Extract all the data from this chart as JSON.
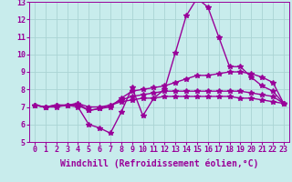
{
  "background_color": "#c8ecec",
  "grid_color": "#aad4d4",
  "line_color": "#990099",
  "xlim": [
    -0.5,
    23.5
  ],
  "ylim": [
    5,
    13
  ],
  "xlabel": "Windchill (Refroidissement éolien,°C)",
  "xticks": [
    0,
    1,
    2,
    3,
    4,
    5,
    6,
    7,
    8,
    9,
    10,
    11,
    12,
    13,
    14,
    15,
    16,
    17,
    18,
    19,
    20,
    21,
    22,
    23
  ],
  "yticks": [
    5,
    6,
    7,
    8,
    9,
    10,
    11,
    12,
    13
  ],
  "curves": [
    [
      7.1,
      7.0,
      7.0,
      7.1,
      7.0,
      6.0,
      5.8,
      5.5,
      6.7,
      8.1,
      6.5,
      7.5,
      8.0,
      10.1,
      12.2,
      13.2,
      12.7,
      11.0,
      9.3,
      9.3,
      8.7,
      8.2,
      7.9,
      7.2
    ],
    [
      7.1,
      7.0,
      7.1,
      7.1,
      7.1,
      6.8,
      6.9,
      7.0,
      7.5,
      7.9,
      8.0,
      8.1,
      8.2,
      8.4,
      8.6,
      8.8,
      8.8,
      8.9,
      9.0,
      9.0,
      8.9,
      8.7,
      8.4,
      7.2
    ],
    [
      7.1,
      7.0,
      7.1,
      7.1,
      7.2,
      6.8,
      6.9,
      7.1,
      7.4,
      7.6,
      7.7,
      7.8,
      7.9,
      7.9,
      7.9,
      7.9,
      7.9,
      7.9,
      7.9,
      7.9,
      7.8,
      7.7,
      7.6,
      7.2
    ],
    [
      7.1,
      7.0,
      7.1,
      7.1,
      7.2,
      7.0,
      7.0,
      7.1,
      7.3,
      7.4,
      7.5,
      7.5,
      7.6,
      7.6,
      7.6,
      7.6,
      7.6,
      7.6,
      7.6,
      7.5,
      7.5,
      7.4,
      7.3,
      7.2
    ]
  ],
  "marker": "*",
  "marker_size": 4,
  "linewidth": 1.0,
  "xlabel_fontsize": 7,
  "tick_fontsize": 6
}
